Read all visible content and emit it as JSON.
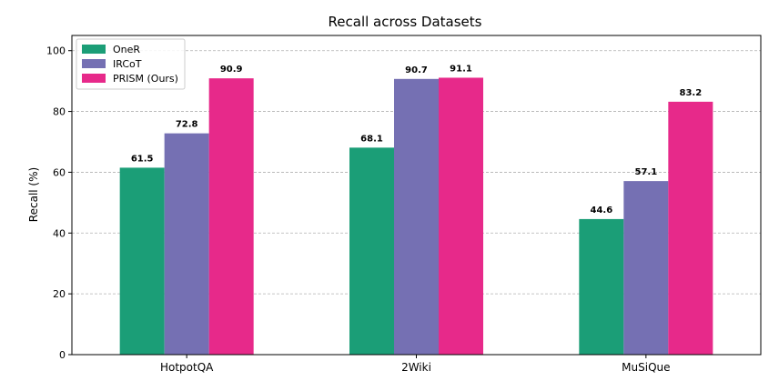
{
  "chart_data": {
    "type": "bar",
    "title": "Recall across Datasets",
    "xlabel": "",
    "ylabel": "Recall (%)",
    "ylim": [
      0,
      105
    ],
    "yticks": [
      0,
      20,
      40,
      60,
      80,
      100
    ],
    "categories": [
      "HotpotQA",
      "2Wiki",
      "MuSiQue"
    ],
    "series": [
      {
        "name": "OneR",
        "color": "#1b9e77",
        "values": [
          61.5,
          68.1,
          44.6
        ]
      },
      {
        "name": "IRCoT",
        "color": "#7570b3",
        "values": [
          72.8,
          90.7,
          57.1
        ]
      },
      {
        "name": "PRISM (Ours)",
        "color": "#e7298a",
        "values": [
          90.9,
          91.1,
          83.2
        ]
      }
    ],
    "value_labels": true,
    "grid": "y-dashed",
    "legend_position": "top-left"
  }
}
